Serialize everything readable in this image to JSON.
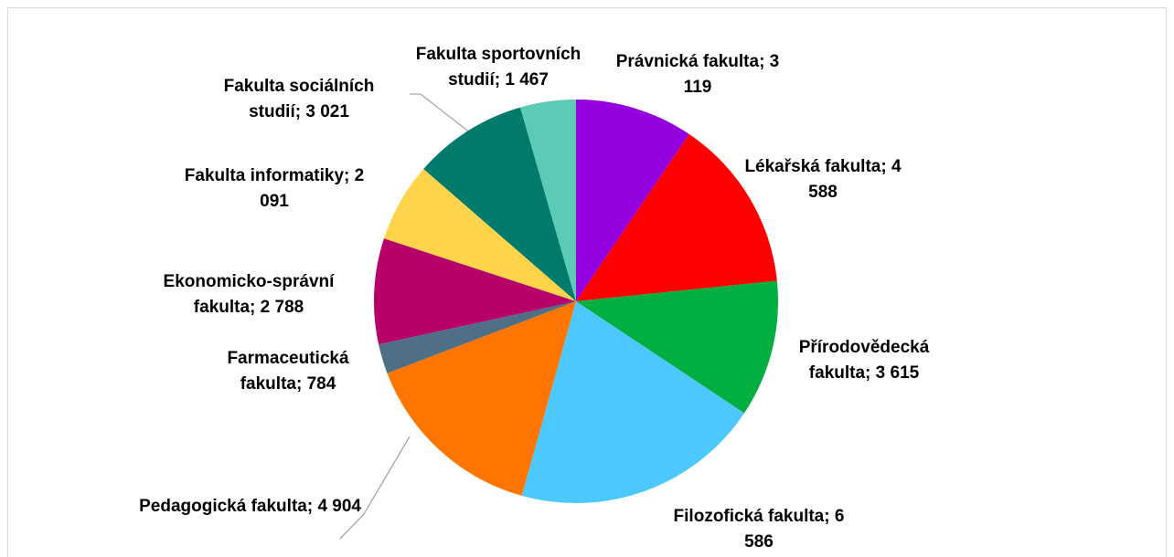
{
  "chart_data": {
    "type": "pie",
    "categories": [
      "Právnická fakulta",
      "Lékařská fakulta",
      "Přírodovědecká fakulta",
      "Filozofická fakulta",
      "Pedagogická fakulta",
      "Farmaceutická fakulta",
      "Ekonomicko-správní fakulta",
      "Fakulta informatiky",
      "Fakulta sociálních studií",
      "Fakulta sportovních studií"
    ],
    "values": [
      3119,
      4588,
      3615,
      6586,
      4904,
      784,
      2788,
      2091,
      3021,
      1467
    ],
    "value_labels": [
      "3 119",
      "4 588",
      "3 615",
      "6 586",
      "4 904",
      "784",
      "2 788",
      "2 091",
      "3 021",
      "1 467"
    ],
    "label_separator": "; ",
    "colors": [
      "#9400de",
      "#ff0000",
      "#00af3f",
      "#4dc8ff",
      "#ff7500",
      "#4f6f86",
      "#b8006b",
      "#ffd34a",
      "#007a6a",
      "#5ccab4"
    ]
  }
}
